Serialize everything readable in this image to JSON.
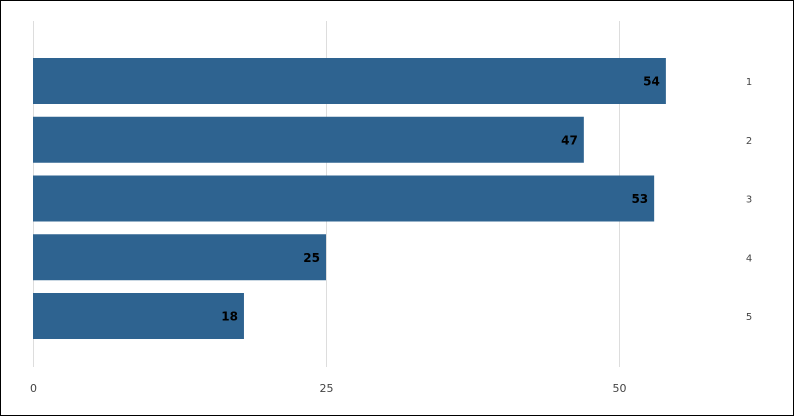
{
  "chart_data": {
    "type": "bar",
    "orientation": "horizontal",
    "categories": [
      "1",
      "2",
      "3",
      "4",
      "5"
    ],
    "values": [
      54,
      47,
      53,
      25,
      18
    ],
    "data_labels": [
      "54",
      "47",
      "53",
      "25",
      "18"
    ],
    "xlim": [
      0,
      65
    ],
    "x_ticks": [
      0,
      25,
      50
    ],
    "x_tick_labels": [
      "0",
      "25",
      "50"
    ],
    "category_axis_side": "right",
    "grid": true,
    "legend": "none",
    "colors": {
      "bar": "#2e6390",
      "grid": "#dddddd",
      "data_label": "#000000"
    }
  }
}
